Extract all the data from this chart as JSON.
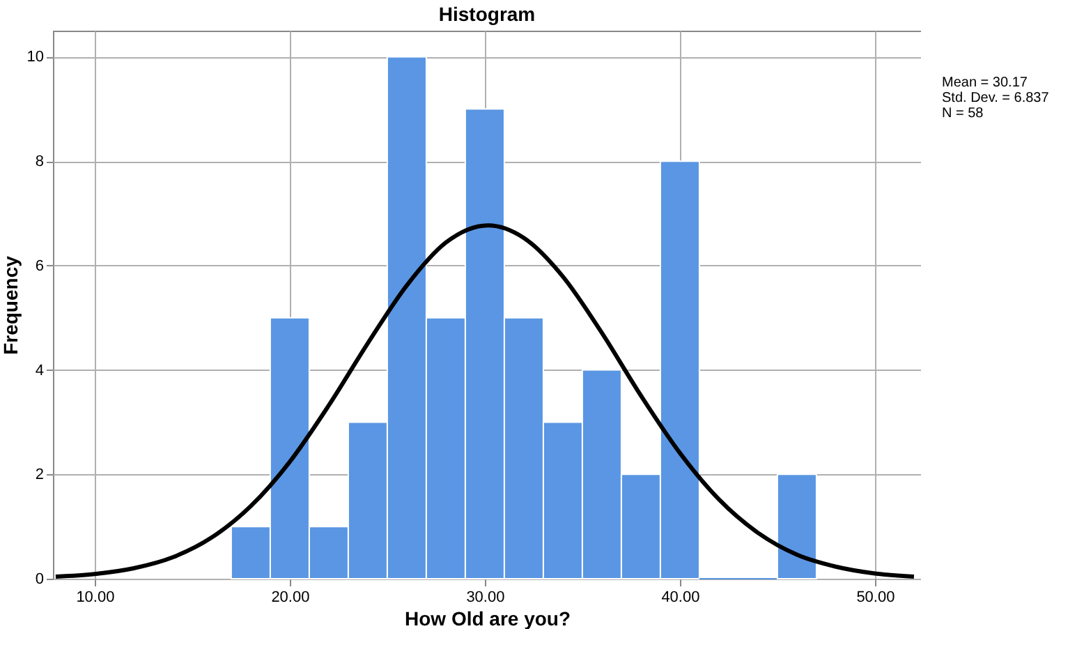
{
  "chart_data": {
    "type": "histogram",
    "title": "Histogram",
    "xlabel": "How Old are you?",
    "ylabel": "Frequency",
    "xlim": [
      7.86,
      52.36
    ],
    "xticks": [
      {
        "value": 10,
        "label": "10.00"
      },
      {
        "value": 20,
        "label": "20.00"
      },
      {
        "value": 30,
        "label": "30.00"
      },
      {
        "value": 40,
        "label": "40.00"
      },
      {
        "value": 50,
        "label": "50.00"
      }
    ],
    "ylim": [
      0,
      10.5
    ],
    "yticks": [
      0,
      2,
      4,
      6,
      8,
      10
    ],
    "grid": true,
    "annotations": [
      "Mean = 30.17",
      "Std. Dev. = 6.837",
      "N = 58"
    ],
    "series": [
      {
        "color": "#5a96e3",
        "bins": [
          17,
          19,
          21,
          23,
          25,
          27,
          29,
          31,
          33,
          35,
          37,
          39,
          41,
          43,
          45,
          47
        ],
        "values": [
          1,
          5,
          1,
          3,
          10,
          5,
          9,
          5,
          3,
          4,
          2,
          8,
          0,
          0,
          2
        ]
      },
      {
        "type": "line",
        "color": "#000000",
        "x": [
          8,
          10,
          12,
          14,
          16,
          18,
          20,
          22,
          24,
          26,
          28,
          30.17,
          32,
          34,
          36,
          38,
          40,
          42,
          44,
          46,
          48,
          50,
          52
        ],
        "values": [
          0.04,
          0.09,
          0.2,
          0.41,
          0.79,
          1.39,
          2.24,
          3.32,
          4.51,
          5.62,
          6.44,
          6.77,
          6.53,
          5.79,
          4.71,
          3.51,
          2.41,
          1.52,
          0.88,
          0.46,
          0.23,
          0.1,
          0.04
        ]
      }
    ]
  }
}
